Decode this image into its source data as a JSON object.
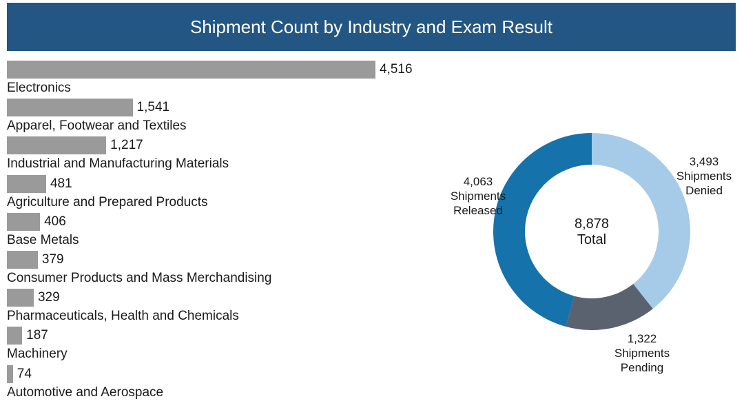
{
  "title": "Shipment Count by Industry and Exam Result",
  "chart_data": [
    {
      "type": "bar",
      "orientation": "horizontal",
      "categories": [
        "Electronics",
        "Apparel, Footwear and Textiles",
        "Industrial and Manufacturing Materials",
        "Agriculture and Prepared Products",
        "Base Metals",
        "Consumer Products and Mass Merchandising",
        "Pharmaceuticals, Health and Chemicals",
        "Machinery",
        "Automotive and Aerospace"
      ],
      "values": [
        4516,
        1541,
        1217,
        481,
        406,
        379,
        329,
        187,
        74
      ],
      "value_labels": [
        "4,516",
        "1,541",
        "1,217",
        "481",
        "406",
        "379",
        "329",
        "187",
        "74"
      ],
      "bar_color": "#9a9a9a",
      "axis_visible": false,
      "grid": false
    },
    {
      "type": "pie",
      "variant": "donut",
      "center_label": [
        "8,878",
        "Total"
      ],
      "total": 8878,
      "slices": [
        {
          "name": "Shipments Denied",
          "value": 3493,
          "label_lines": [
            "3,493",
            "Shipments",
            "Denied"
          ],
          "color": "#a5cbe9"
        },
        {
          "name": "Shipments Pending",
          "value": 1322,
          "label_lines": [
            "1,322",
            "Shipments",
            "Pending"
          ],
          "color": "#5a6270"
        },
        {
          "name": "Shipments Released",
          "value": 4063,
          "label_lines": [
            "4,063",
            "Shipments",
            "Released"
          ],
          "color": "#1672aa"
        }
      ],
      "start_angle": "12 o'clock",
      "direction": "clockwise"
    }
  ]
}
